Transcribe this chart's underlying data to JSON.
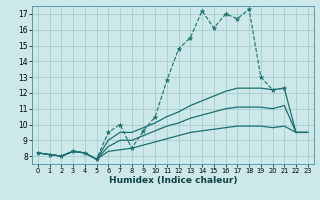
{
  "xlabel": "Humidex (Indice chaleur)",
  "background_color": "#cce8e8",
  "grid_color": "#aacccc",
  "line_color": "#1a7070",
  "xlim": [
    -0.5,
    23.5
  ],
  "ylim": [
    7.5,
    17.5
  ],
  "xticks": [
    0,
    1,
    2,
    3,
    4,
    5,
    6,
    7,
    8,
    9,
    10,
    11,
    12,
    13,
    14,
    15,
    16,
    17,
    18,
    19,
    20,
    21,
    22,
    23
  ],
  "yticks": [
    8,
    9,
    10,
    11,
    12,
    13,
    14,
    15,
    16,
    17
  ],
  "line_dotted": {
    "x": [
      0,
      1,
      2,
      3,
      4,
      5,
      6,
      7,
      8,
      9,
      10,
      11,
      12,
      13,
      14,
      15,
      16,
      17,
      18,
      19,
      20,
      21
    ],
    "y": [
      8.2,
      8.1,
      8.0,
      8.3,
      8.2,
      7.8,
      9.5,
      10.0,
      8.5,
      9.6,
      10.5,
      12.8,
      14.8,
      15.5,
      17.2,
      16.1,
      17.0,
      16.7,
      17.3,
      13.0,
      12.2,
      12.3
    ]
  },
  "line1": {
    "x": [
      0,
      1,
      2,
      3,
      4,
      5,
      6,
      7,
      8,
      9,
      10,
      11,
      12,
      13,
      14,
      15,
      16,
      17,
      18,
      19,
      20,
      21,
      22,
      23
    ],
    "y": [
      8.2,
      8.1,
      8.0,
      8.3,
      8.2,
      7.8,
      8.3,
      8.4,
      8.5,
      8.7,
      8.9,
      9.1,
      9.3,
      9.5,
      9.6,
      9.7,
      9.8,
      9.9,
      9.9,
      9.9,
      9.8,
      9.9,
      9.5,
      9.5
    ]
  },
  "line2": {
    "x": [
      0,
      1,
      2,
      3,
      4,
      5,
      6,
      7,
      8,
      9,
      10,
      11,
      12,
      13,
      14,
      15,
      16,
      17,
      18,
      19,
      20,
      21,
      22,
      23
    ],
    "y": [
      8.2,
      8.1,
      8.0,
      8.3,
      8.2,
      7.8,
      8.6,
      9.0,
      9.0,
      9.3,
      9.6,
      9.9,
      10.1,
      10.4,
      10.6,
      10.8,
      11.0,
      11.1,
      11.1,
      11.1,
      11.0,
      11.2,
      9.5,
      9.5
    ]
  },
  "line3": {
    "x": [
      0,
      1,
      2,
      3,
      4,
      5,
      6,
      7,
      8,
      9,
      10,
      11,
      12,
      13,
      14,
      15,
      16,
      17,
      18,
      19,
      20,
      21,
      22,
      23
    ],
    "y": [
      8.2,
      8.1,
      8.0,
      8.3,
      8.2,
      7.8,
      9.0,
      9.5,
      9.5,
      9.8,
      10.1,
      10.5,
      10.8,
      11.2,
      11.5,
      11.8,
      12.1,
      12.3,
      12.3,
      12.3,
      12.2,
      12.3,
      9.5,
      9.5
    ]
  }
}
